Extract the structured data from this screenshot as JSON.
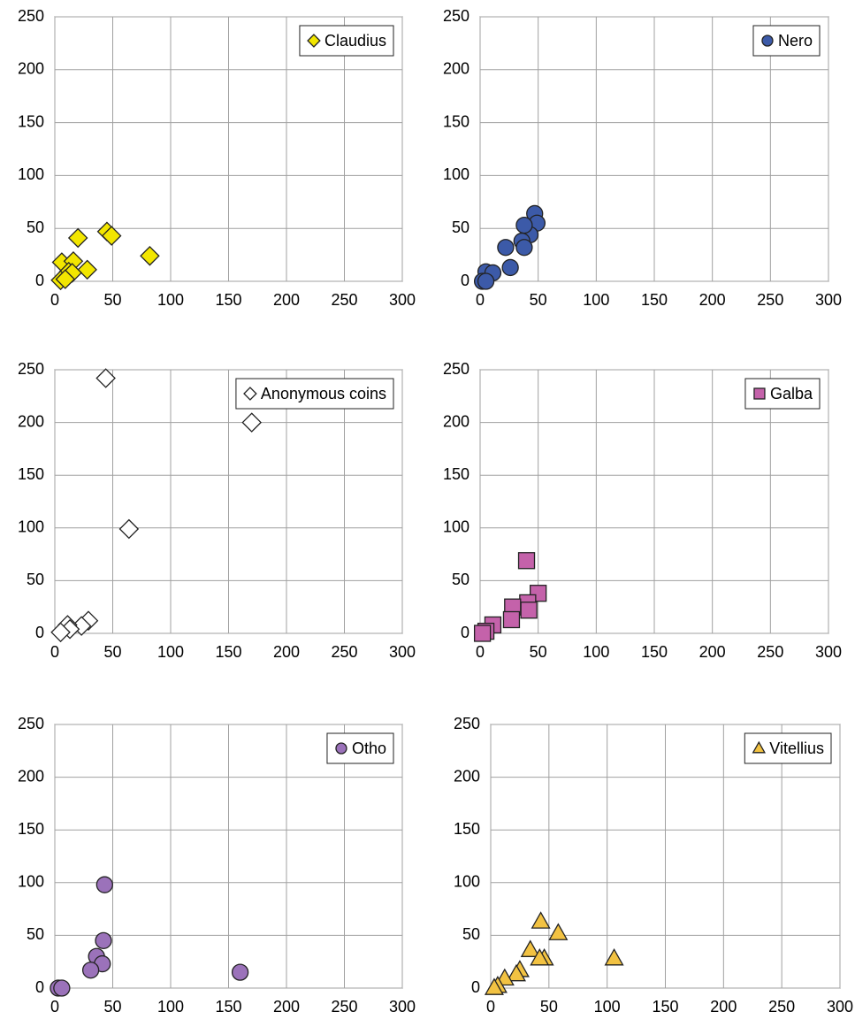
{
  "chart_data": [
    {
      "type": "scatter",
      "xlim": [
        0,
        300
      ],
      "ylim": [
        0,
        250
      ],
      "xticks": [
        0,
        50,
        100,
        150,
        200,
        250,
        300
      ],
      "yticks": [
        0,
        50,
        100,
        150,
        200,
        250
      ],
      "grid": true,
      "legend": "upper right",
      "series": [
        {
          "name": "Claudius",
          "color": "#f2e600",
          "marker": "diamond",
          "x": [
            45,
            49,
            20,
            82,
            6,
            16,
            28,
            12,
            15,
            5,
            9
          ],
          "y": [
            47,
            43,
            41,
            24,
            18,
            19,
            11,
            9,
            8,
            1,
            2
          ]
        }
      ]
    },
    {
      "type": "scatter",
      "xlim": [
        0,
        300
      ],
      "ylim": [
        0,
        250
      ],
      "xticks": [
        0,
        50,
        100,
        150,
        200,
        250,
        300
      ],
      "yticks": [
        0,
        50,
        100,
        150,
        200,
        250
      ],
      "grid": true,
      "legend": "upper right",
      "series": [
        {
          "name": "Nero",
          "color": "#3c5aa8",
          "marker": "circle",
          "x": [
            47,
            49,
            43,
            38,
            36,
            38,
            22,
            26,
            5,
            11,
            2,
            5
          ],
          "y": [
            64,
            55,
            44,
            53,
            38,
            32,
            32,
            13,
            9,
            8,
            0,
            0
          ]
        }
      ]
    },
    {
      "type": "scatter",
      "xlim": [
        0,
        300
      ],
      "ylim": [
        0,
        250
      ],
      "xticks": [
        0,
        50,
        100,
        150,
        200,
        250,
        300
      ],
      "yticks": [
        0,
        50,
        100,
        150,
        200,
        250
      ],
      "grid": true,
      "legend": "upper right",
      "series": [
        {
          "name": "Anonymous coins",
          "color": "#ffffff",
          "marker": "diamond",
          "x": [
            44,
            170,
            64,
            29,
            23,
            11,
            13,
            5
          ],
          "y": [
            242,
            200,
            99,
            12,
            7,
            8,
            4,
            1
          ]
        }
      ]
    },
    {
      "type": "scatter",
      "xlim": [
        0,
        300
      ],
      "ylim": [
        0,
        250
      ],
      "xticks": [
        0,
        50,
        100,
        150,
        200,
        250,
        300
      ],
      "yticks": [
        0,
        50,
        100,
        150,
        200,
        250
      ],
      "grid": true,
      "legend": "upper right",
      "series": [
        {
          "name": "Galba",
          "color": "#c462aa",
          "marker": "square",
          "x": [
            40,
            50,
            41,
            28,
            42,
            27,
            11,
            5,
            2
          ],
          "y": [
            69,
            38,
            29,
            25,
            22,
            13,
            8,
            2,
            0
          ]
        }
      ]
    },
    {
      "type": "scatter",
      "xlim": [
        0,
        300
      ],
      "ylim": [
        0,
        250
      ],
      "xticks": [
        0,
        50,
        100,
        150,
        200,
        250,
        300
      ],
      "yticks": [
        0,
        50,
        100,
        150,
        200,
        250
      ],
      "grid": true,
      "legend": "upper right",
      "series": [
        {
          "name": "Otho",
          "color": "#9b72ba",
          "marker": "circle",
          "x": [
            43,
            42,
            36,
            41,
            31,
            160,
            3,
            6
          ],
          "y": [
            98,
            45,
            30,
            23,
            17,
            15,
            0,
            0
          ]
        }
      ]
    },
    {
      "type": "scatter",
      "xlim": [
        0,
        300
      ],
      "ylim": [
        0,
        250
      ],
      "xticks": [
        0,
        50,
        100,
        150,
        200,
        250,
        300
      ],
      "yticks": [
        0,
        50,
        100,
        150,
        200,
        250
      ],
      "grid": true,
      "legend": "upper right",
      "series": [
        {
          "name": "Vitellius",
          "color": "#f2c242",
          "marker": "triangle",
          "x": [
            43,
            58,
            34,
            106,
            46,
            42,
            25,
            22,
            12,
            6,
            3
          ],
          "y": [
            63,
            52,
            36,
            28,
            28,
            28,
            17,
            13,
            9,
            2,
            0
          ]
        }
      ]
    }
  ]
}
